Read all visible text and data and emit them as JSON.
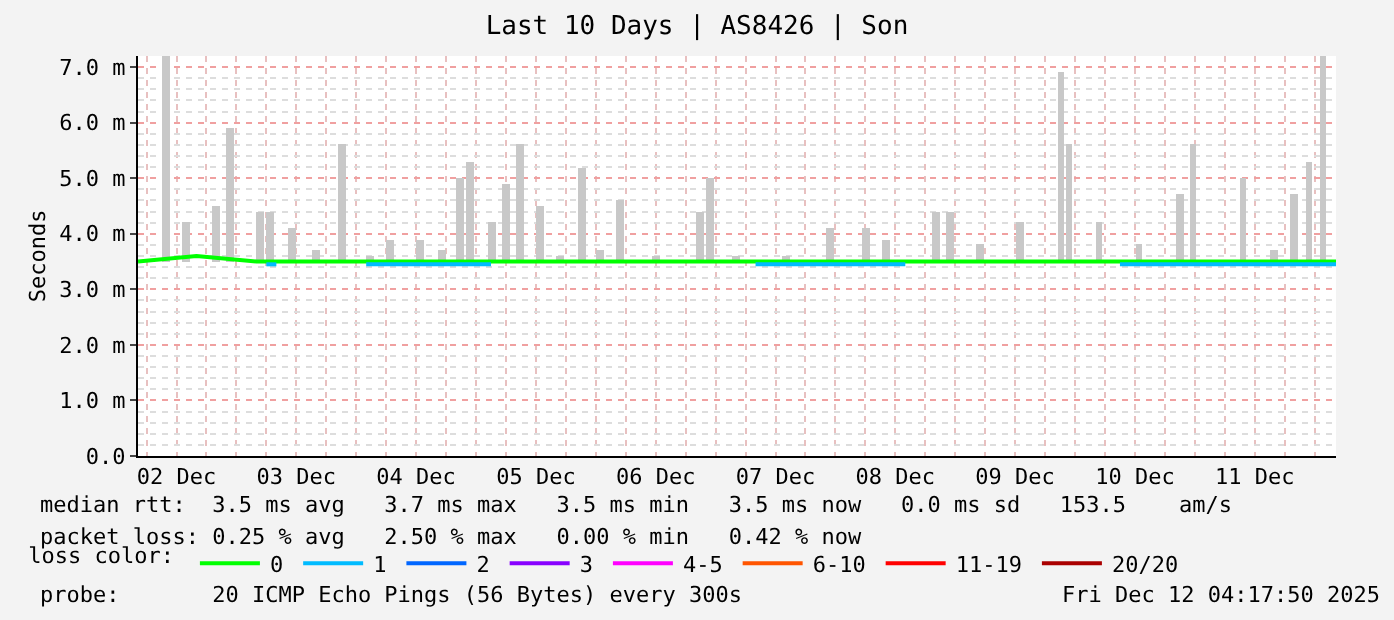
{
  "chart_data": {
    "type": "line",
    "title": "Last 10 Days | AS8426 | Son",
    "ylabel": "Seconds",
    "xlim": [
      "2025-12-02T04:17",
      "2025-12-12T04:17"
    ],
    "xticks": [
      {
        "value": "2025-12-02T12:00",
        "label": "02 Dec"
      },
      {
        "value": "2025-12-03T12:00",
        "label": "03 Dec"
      },
      {
        "value": "2025-12-04T12:00",
        "label": "04 Dec"
      },
      {
        "value": "2025-12-05T12:00",
        "label": "05 Dec"
      },
      {
        "value": "2025-12-06T12:00",
        "label": "06 Dec"
      },
      {
        "value": "2025-12-07T12:00",
        "label": "07 Dec"
      },
      {
        "value": "2025-12-08T12:00",
        "label": "08 Dec"
      },
      {
        "value": "2025-12-09T12:00",
        "label": "09 Dec"
      },
      {
        "value": "2025-12-10T12:00",
        "label": "10 Dec"
      },
      {
        "value": "2025-12-11T12:00",
        "label": "11 Dec"
      }
    ],
    "ylim": [
      0,
      7.2
    ],
    "yticks": [
      {
        "value": 0,
        "label": "0.0"
      },
      {
        "value": 1,
        "label": "1.0 m"
      },
      {
        "value": 2,
        "label": "2.0 m"
      },
      {
        "value": 3,
        "label": "3.0 m"
      },
      {
        "value": 4,
        "label": "4.0 m"
      },
      {
        "value": 5,
        "label": "5.0 m"
      },
      {
        "value": 6,
        "label": "6.0 m"
      },
      {
        "value": 7,
        "label": "7.0 m"
      }
    ],
    "grid": true,
    "legend": "bottom",
    "legend_title": "loss color:",
    "marker": "none",
    "line_style": "solid",
    "series": [
      {
        "type": "bar",
        "color": "#c8c8c8",
        "x": [
          "2025-12-02T10:00",
          "2025-12-02T14:00",
          "2025-12-02T20:00",
          "2025-12-02T22:50",
          "2025-12-03T04:50",
          "2025-12-03T06:50",
          "2025-12-03T11:10",
          "2025-12-03T16:00",
          "2025-12-03T21:10",
          "2025-12-04T02:50",
          "2025-12-04T06:50",
          "2025-12-04T12:50",
          "2025-12-04T17:10",
          "2025-12-04T20:50",
          "2025-12-04T22:50",
          "2025-12-05T03:10",
          "2025-12-05T06:00",
          "2025-12-05T08:50",
          "2025-12-05T12:50",
          "2025-12-05T16:50",
          "2025-12-05T21:10",
          "2025-12-06T00:50",
          "2025-12-06T04:50",
          "2025-12-06T12:00",
          "2025-12-06T20:50",
          "2025-12-06T22:50",
          "2025-12-07T04:00",
          "2025-12-07T14:00",
          "2025-12-07T22:50",
          "2025-12-08T06:00",
          "2025-12-08T10:00",
          "2025-12-08T20:00",
          "2025-12-08T22:50",
          "2025-12-09T04:50",
          "2025-12-09T12:50",
          "2025-12-09T21:10",
          "2025-12-09T22:50",
          "2025-12-10T04:50",
          "2025-12-10T12:50",
          "2025-12-10T21:10",
          "2025-12-10T23:40",
          "2025-12-11T09:40",
          "2025-12-11T16:00",
          "2025-12-11T20:00",
          "2025-12-11T22:50",
          "2025-12-12T01:40"
        ],
        "base": [
          3.5,
          3.5,
          3.5,
          3.5,
          3.5,
          3.5,
          3.5,
          3.5,
          3.5,
          3.5,
          3.5,
          3.5,
          3.5,
          3.5,
          3.5,
          3.5,
          3.5,
          3.5,
          3.5,
          3.5,
          3.5,
          3.5,
          3.5,
          3.5,
          3.5,
          3.5,
          3.5,
          3.5,
          3.5,
          3.5,
          3.5,
          3.5,
          3.5,
          3.5,
          3.5,
          3.5,
          3.5,
          3.5,
          3.5,
          3.5,
          3.5,
          3.5,
          3.5,
          3.5,
          3.5,
          3.5
        ],
        "values": [
          3.7,
          0.7,
          1.0,
          2.4,
          0.9,
          0.9,
          0.6,
          0.2,
          2.1,
          0.1,
          0.4,
          0.4,
          0.2,
          1.5,
          1.8,
          0.7,
          1.4,
          2.1,
          1.0,
          0.1,
          1.7,
          0.2,
          1.1,
          0.1,
          0.9,
          1.5,
          0.1,
          0.1,
          0.6,
          0.6,
          0.4,
          0.9,
          0.9,
          0.3,
          0.7,
          3.4,
          2.1,
          0.7,
          0.3,
          1.2,
          2.1,
          1.5,
          0.2,
          1.2,
          1.8,
          3.7
        ]
      },
      {
        "name": "0",
        "color": "#00ff00",
        "x": [
          "2025-12-02T04:17",
          "2025-12-02T16:00",
          "2025-12-03T04:00",
          "2025-12-03T16:00",
          "2025-12-04T04:00",
          "2025-12-04T16:00",
          "2025-12-05T04:00",
          "2025-12-05T16:00",
          "2025-12-06T04:00",
          "2025-12-06T16:00",
          "2025-12-07T04:00",
          "2025-12-07T16:00",
          "2025-12-08T04:00",
          "2025-12-08T16:00",
          "2025-12-09T04:00",
          "2025-12-09T16:00",
          "2025-12-10T04:00",
          "2025-12-10T16:00",
          "2025-12-11T04:00",
          "2025-12-11T16:00",
          "2025-12-12T04:17"
        ],
        "values": [
          3.5,
          3.6,
          3.5,
          3.5,
          3.5,
          3.5,
          3.5,
          3.5,
          3.5,
          3.5,
          3.5,
          3.5,
          3.5,
          3.5,
          3.5,
          3.5,
          3.5,
          3.5,
          3.5,
          3.5,
          3.5
        ]
      },
      {
        "name": "1",
        "color": "#00bbff",
        "x": [
          "2025-12-03T06:00",
          "2025-12-03T08:00",
          "2025-12-04T00:00",
          "2025-12-04T02:00",
          "2025-12-05T00:00",
          "2025-12-05T03:00",
          "2025-12-07T06:00",
          "2025-12-07T08:00",
          "2025-12-08T12:00",
          "2025-12-08T14:00",
          "2025-12-10T06:00",
          "2025-12-10T09:00",
          "2025-12-11T22:00",
          "2025-12-12T04:17"
        ],
        "values": [
          3.45,
          3.45,
          null,
          3.45,
          3.45,
          3.45,
          null,
          3.45,
          3.45,
          3.45,
          null,
          3.45,
          3.45,
          3.45
        ]
      },
      {
        "name": "2",
        "color": "#0066ff"
      },
      {
        "name": "3",
        "color": "#8800ff"
      },
      {
        "name": "4-5",
        "color": "#ff00ff"
      },
      {
        "name": "6-10",
        "color": "#ff5500"
      },
      {
        "name": "11-19",
        "color": "#ff0000"
      },
      {
        "name": "20/20",
        "color": "#aa0000"
      }
    ],
    "annotations": [
      "median rtt:  3.5 ms avg   3.7 ms max   3.5 ms min   3.5 ms now   0.0 ms sd   153.5    am/s",
      "packet loss: 0.25 % avg   2.50 % max   0.00 % min   0.42 % now",
      "probe:       20 ICMP Echo Pings (56 Bytes) every 300s",
      "Fri Dec 12 04:17:50 2025"
    ]
  }
}
